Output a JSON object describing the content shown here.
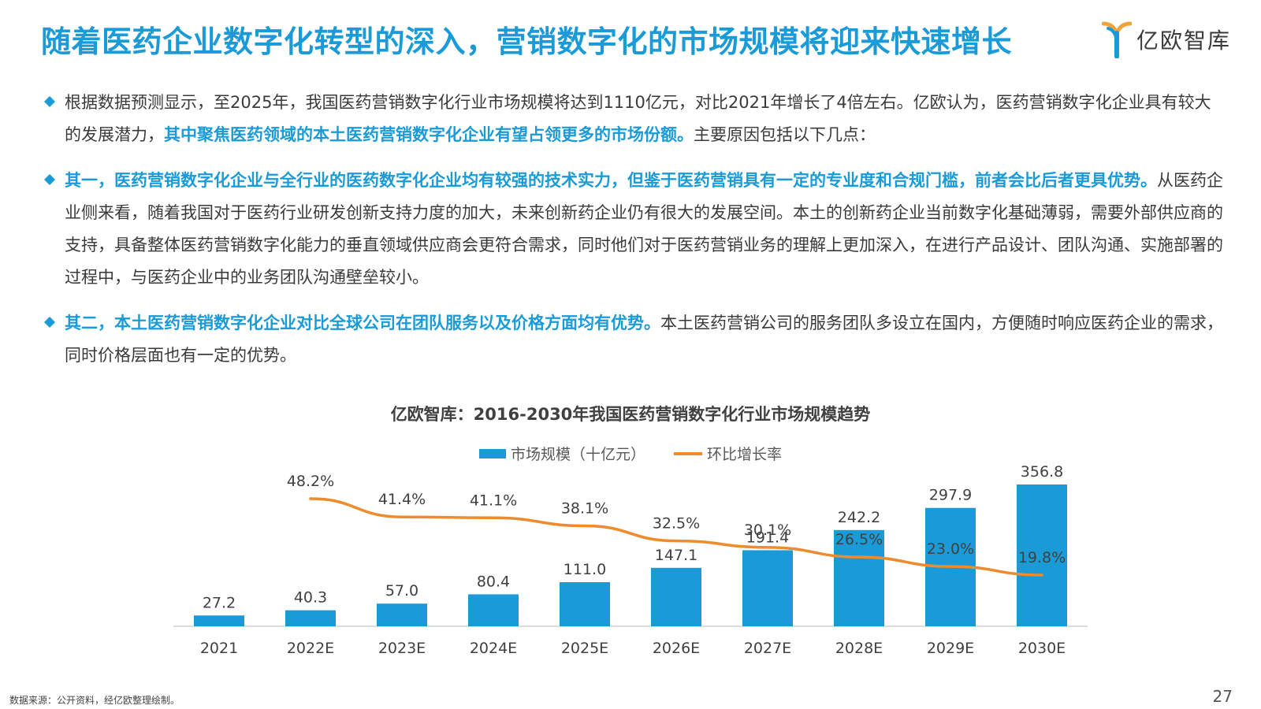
{
  "header": {
    "title": "随着医药企业数字化转型的深入，营销数字化的市场规模将迎来快速增长",
    "logo_text": "亿欧智库"
  },
  "paragraphs": [
    {
      "before": "根据数据预测显示，至2025年，我国医药营销数字化行业市场规模将达到1110亿元，对比2021年增长了4倍左右。亿欧认为，医药营销数字化企业具有较大的发展潜力，",
      "highlight": "其中聚焦医药领域的本土医药营销数字化企业有望占领更多的市场份额。",
      "after": "主要原因包括以下几点："
    },
    {
      "before": "",
      "highlight": "其一，医药营销数字化企业与全行业的医药数字化企业均有较强的技术实力，但鉴于医药营销具有一定的专业度和合规门槛，前者会比后者更具优势。",
      "after": "从医药企业侧来看，随着我国对于医药行业研发创新支持力度的加大，未来创新药企业仍有很大的发展空间。本土的创新药企业当前数字化基础薄弱，需要外部供应商的支持，具备整体医药营销数字化能力的垂直领域供应商会更符合需求，同时他们对于医药营销业务的理解上更加深入，在进行产品设计、团队沟通、实施部署的过程中，与医药企业中的业务团队沟通壁垒较小。"
    },
    {
      "before": "",
      "highlight": "其二，本土医药营销数字化企业对比全球公司在团队服务以及价格方面均有优势。",
      "after": "本土医药营销公司的服务团队多设立在国内，方便随时响应医药企业的需求，同时价格层面也有一定的优势。"
    }
  ],
  "chart_data": {
    "type": "bar",
    "title": "亿欧智库：2016-2030年我国医药营销数字化行业市场规模趋势",
    "categories": [
      "2021",
      "2022E",
      "2023E",
      "2024E",
      "2025E",
      "2026E",
      "2027E",
      "2028E",
      "2029E",
      "2030E"
    ],
    "series": [
      {
        "name": "市场规模（十亿元）",
        "kind": "bar",
        "color": "#1a9bd7",
        "values": [
          27.2,
          40.3,
          57.0,
          80.4,
          111.0,
          147.1,
          191.4,
          242.2,
          297.9,
          356.8
        ],
        "labels": [
          "27.2",
          "40.3",
          "57.0",
          "80.4",
          "111.0",
          "147.1",
          "191.4",
          "242.2",
          "297.9",
          "356.8"
        ]
      },
      {
        "name": "环比增长率",
        "kind": "line",
        "color": "#ed8b2d",
        "values": [
          null,
          48.2,
          41.4,
          41.1,
          38.1,
          32.5,
          30.1,
          26.5,
          23.0,
          19.8
        ],
        "labels": [
          null,
          "48.2%",
          "41.4%",
          "41.1%",
          "38.1%",
          "32.5%",
          "30.1%",
          "26.5%",
          "23.0%",
          "19.8%"
        ]
      }
    ],
    "legend_position": "top-center",
    "grid": false
  },
  "footer": {
    "source": "数据来源：公开资料，经亿欧整理绘制。",
    "page": "27"
  }
}
